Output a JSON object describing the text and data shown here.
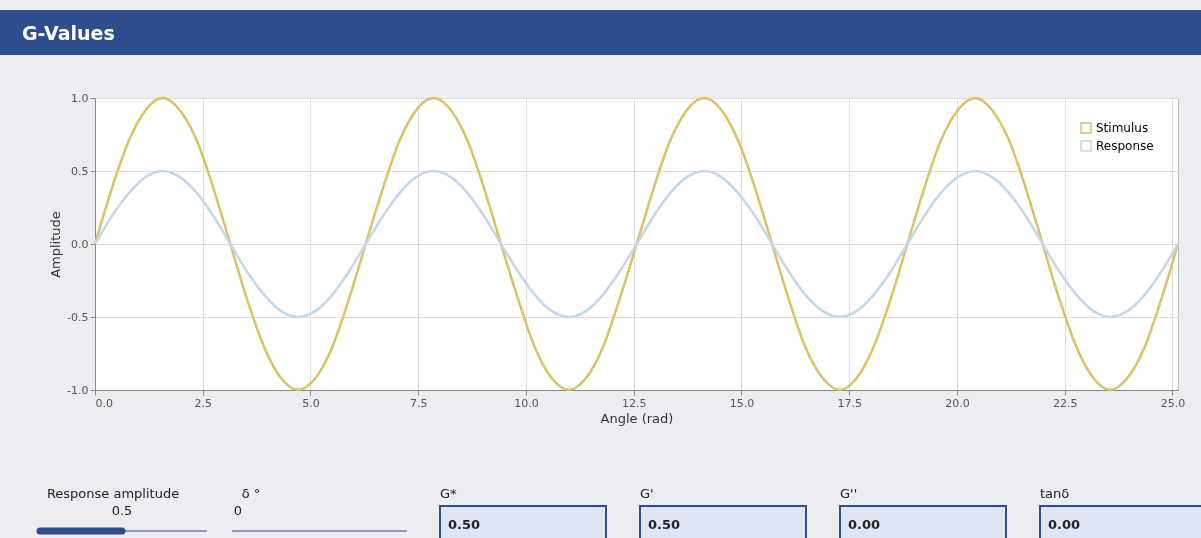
{
  "chart_data": {
    "type": "line",
    "title": "G-Values",
    "xlabel": "Angle (rad)",
    "ylabel": "Amplitude",
    "x": [
      0,
      0.39,
      0.79,
      1.18,
      1.57,
      1.96,
      2.36,
      2.75,
      3.14,
      3.53,
      3.93,
      4.32,
      4.71,
      5.11,
      5.5,
      5.89,
      6.28,
      6.68,
      7.07,
      7.46,
      7.85,
      8.25,
      8.64,
      9.03,
      9.42,
      9.82,
      10.21,
      10.6,
      11.0,
      11.39,
      11.78,
      12.17,
      12.57,
      12.96,
      13.35,
      13.74,
      14.14,
      14.53,
      14.92,
      15.32,
      15.71,
      16.1,
      16.49,
      16.89,
      17.28,
      17.67,
      18.06,
      18.46,
      18.85,
      19.24,
      19.63,
      20.03,
      20.42,
      20.81,
      21.21,
      21.6,
      21.99,
      22.38,
      22.78,
      23.17,
      23.56,
      23.95,
      24.35,
      24.74,
      25.13
    ],
    "series": [
      {
        "name": "Stimulus",
        "color": "#dcc062",
        "values": [
          0,
          0.38,
          0.71,
          0.92,
          1,
          0.92,
          0.71,
          0.38,
          0,
          -0.38,
          -0.71,
          -0.92,
          -1,
          -0.92,
          -0.71,
          -0.38,
          0,
          0.38,
          0.71,
          0.92,
          1,
          0.92,
          0.71,
          0.38,
          0,
          -0.38,
          -0.71,
          -0.92,
          -1,
          -0.92,
          -0.71,
          -0.38,
          0,
          0.38,
          0.71,
          0.92,
          1,
          0.92,
          0.71,
          0.38,
          0,
          -0.38,
          -0.71,
          -0.92,
          -1,
          -0.92,
          -0.71,
          -0.38,
          0,
          0.38,
          0.71,
          0.92,
          1,
          0.92,
          0.71,
          0.38,
          0,
          -0.38,
          -0.71,
          -0.92,
          -1,
          -0.92,
          -0.71,
          -0.38,
          0
        ]
      },
      {
        "name": "Response",
        "color": "#c5d6ea",
        "values": [
          0,
          0.19,
          0.35,
          0.46,
          0.5,
          0.46,
          0.35,
          0.19,
          0,
          -0.19,
          -0.35,
          -0.46,
          -0.5,
          -0.46,
          -0.35,
          -0.19,
          0,
          0.19,
          0.35,
          0.46,
          0.5,
          0.46,
          0.35,
          0.19,
          0,
          -0.19,
          -0.35,
          -0.46,
          -0.5,
          -0.46,
          -0.35,
          -0.19,
          0,
          0.19,
          0.35,
          0.46,
          0.5,
          0.46,
          0.35,
          0.19,
          0,
          -0.19,
          -0.35,
          -0.46,
          -0.5,
          -0.46,
          -0.35,
          -0.19,
          0,
          0.19,
          0.35,
          0.46,
          0.5,
          0.46,
          0.35,
          0.19,
          0,
          -0.19,
          -0.35,
          -0.46,
          -0.5,
          -0.46,
          -0.35,
          -0.19,
          0
        ]
      }
    ],
    "xlim": [
      0,
      25.13
    ],
    "xticks": [
      {
        "value": 0,
        "label": "0.0"
      },
      {
        "value": 2.5,
        "label": "2.5"
      },
      {
        "value": 5,
        "label": "5.0"
      },
      {
        "value": 7.5,
        "label": "7.5"
      },
      {
        "value": 10,
        "label": "10.0"
      },
      {
        "value": 12.5,
        "label": "12.5"
      },
      {
        "value": 15,
        "label": "15.0"
      },
      {
        "value": 17.5,
        "label": "17.5"
      },
      {
        "value": 20,
        "label": "20.0"
      },
      {
        "value": 22.5,
        "label": "22.5"
      },
      {
        "value": 25,
        "label": "25.0"
      }
    ],
    "ylim": [
      -1,
      1
    ],
    "yticks": [
      {
        "value": -1,
        "label": "-1.0"
      },
      {
        "value": -0.5,
        "label": "-0.5"
      },
      {
        "value": 0,
        "label": "0.0"
      },
      {
        "value": 0.5,
        "label": "0.5"
      },
      {
        "value": 1,
        "label": "1.0"
      }
    ],
    "grid": true,
    "legend": "top right",
    "marker": "none",
    "line_style": "solid",
    "annotations": [
      "Response amplitude",
      "0.5",
      "δ °",
      "0",
      "G*",
      "0.50",
      "G'",
      "0.50",
      "G''",
      "0.00",
      "tanδ",
      "0.00"
    ]
  }
}
